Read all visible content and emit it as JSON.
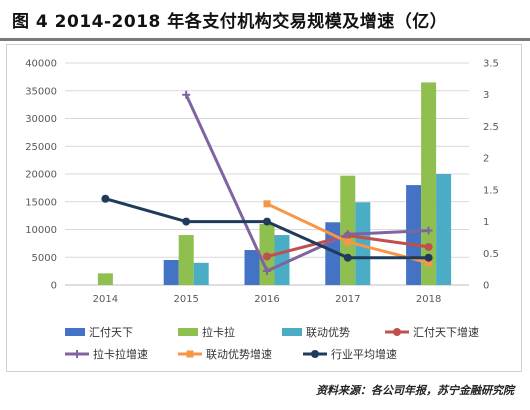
{
  "title": "图 4 2014-2018 年各支付机构交易规模及增速（亿）",
  "source": "资料来源：各公司年报，苏宁金融研究院",
  "chart_data": {
    "type": "bar",
    "categories": [
      "2014",
      "2015",
      "2016",
      "2017",
      "2018"
    ],
    "y_left": {
      "ylim": [
        0,
        40000
      ],
      "ticks": [
        "0",
        "5000",
        "10000",
        "15000",
        "20000",
        "25000",
        "30000",
        "35000",
        "40000"
      ]
    },
    "y_right": {
      "ylim": [
        0,
        3.5
      ],
      "ticks": [
        "0",
        "0.5",
        "1",
        "1.5",
        "2",
        "2.5",
        "3",
        "3.5"
      ]
    },
    "bar_series": [
      {
        "name": "汇付天下",
        "color": "#4472C4",
        "values": [
          null,
          4500,
          6300,
          11300,
          18000
        ]
      },
      {
        "name": "拉卡拉",
        "color": "#8FBF4F",
        "values": [
          2100,
          9000,
          11000,
          19700,
          36500
        ]
      },
      {
        "name": "联动优势",
        "color": "#4BACC6",
        "values": [
          null,
          4000,
          9000,
          14900,
          20000
        ]
      }
    ],
    "line_series": [
      {
        "name": "汇付天下增速",
        "color": "#C0504D",
        "marker": "circle",
        "values": [
          null,
          null,
          0.45,
          0.78,
          0.6
        ]
      },
      {
        "name": "拉卡拉增速",
        "color": "#8064A2",
        "marker": "plus",
        "values": [
          null,
          3.0,
          0.22,
          0.8,
          0.86
        ]
      },
      {
        "name": "联动优势增速",
        "color": "#F79646",
        "marker": "square",
        "values": [
          null,
          null,
          1.28,
          0.68,
          0.35
        ]
      },
      {
        "name": "行业平均增速",
        "color": "#1F3B5C",
        "marker": "circle",
        "values": [
          1.36,
          1.0,
          1.0,
          0.43,
          0.43
        ]
      }
    ],
    "legend_position": "bottom",
    "grid": true
  }
}
